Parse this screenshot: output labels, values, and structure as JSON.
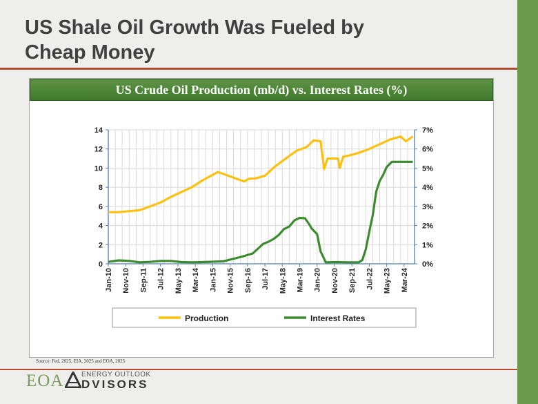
{
  "slide": {
    "title": "US Shale Oil Growth Was Fueled by Cheap Money",
    "source": "Source: Fed, 2025, EIA, 2025 and EOA, 2025"
  },
  "logo": {
    "mark": "EOA",
    "line1": "ENERGY OUTLOOK",
    "line2": "DVISORS"
  },
  "colors": {
    "accent_bar": "#6a9a4a",
    "rule": "#b14c2a",
    "production": "#fdc010",
    "rates": "#3c8a2e",
    "banner": "#4f8a38"
  },
  "chart_data": {
    "type": "line",
    "title": "US Crude Oil Production (mb/d) vs. Interest Rates (%)",
    "x_ticks": [
      "Jan-10",
      "Nov-10",
      "Sep-11",
      "Jul-12",
      "May-13",
      "Mar-14",
      "Jan-15",
      "Nov-15",
      "Sep-16",
      "Jul-17",
      "May-18",
      "Mar-19",
      "Jan-20",
      "Nov-20",
      "Sep-21",
      "Jul-22",
      "May-23",
      "Mar-24"
    ],
    "y_left_ticks": [
      "0",
      "2",
      "4",
      "6",
      "8",
      "10",
      "12",
      "14"
    ],
    "y_right_ticks": [
      "0%",
      "1%",
      "2%",
      "3%",
      "4%",
      "5%",
      "6%",
      "7%"
    ],
    "ylim_left": [
      0,
      14
    ],
    "ylim_right": [
      0,
      7
    ],
    "grid": true,
    "legend_position": "bottom",
    "series": [
      {
        "name": "Production",
        "axis": "left",
        "x": [
          "2010-01",
          "2010-07",
          "2011-01",
          "2011-07",
          "2012-01",
          "2012-07",
          "2013-01",
          "2013-07",
          "2014-01",
          "2014-07",
          "2015-01",
          "2015-04",
          "2015-07",
          "2016-01",
          "2016-07",
          "2016-10",
          "2017-01",
          "2017-07",
          "2018-01",
          "2018-07",
          "2019-01",
          "2019-07",
          "2019-11",
          "2020-03",
          "2020-05",
          "2020-07",
          "2020-10",
          "2021-01",
          "2021-02",
          "2021-04",
          "2021-07",
          "2022-01",
          "2022-07",
          "2023-01",
          "2023-07",
          "2024-01",
          "2024-04",
          "2024-08"
        ],
        "values": [
          5.4,
          5.4,
          5.5,
          5.6,
          6.0,
          6.4,
          7.0,
          7.5,
          8.0,
          8.7,
          9.3,
          9.6,
          9.4,
          9.0,
          8.6,
          8.9,
          8.9,
          9.2,
          10.2,
          11.0,
          11.8,
          12.2,
          12.9,
          12.8,
          9.9,
          11.0,
          11.0,
          11.0,
          10.0,
          11.2,
          11.3,
          11.6,
          12.0,
          12.5,
          13.0,
          13.3,
          12.8,
          13.3
        ]
      },
      {
        "name": "Interest Rates",
        "axis": "right",
        "x": [
          "2010-01",
          "2010-07",
          "2011-01",
          "2011-07",
          "2012-01",
          "2012-07",
          "2013-01",
          "2013-07",
          "2014-01",
          "2014-07",
          "2015-01",
          "2015-07",
          "2015-12",
          "2016-06",
          "2016-12",
          "2017-03",
          "2017-06",
          "2017-09",
          "2017-12",
          "2018-03",
          "2018-06",
          "2018-09",
          "2018-12",
          "2019-03",
          "2019-06",
          "2019-08",
          "2019-10",
          "2020-01",
          "2020-03",
          "2020-06",
          "2021-01",
          "2021-06",
          "2022-01",
          "2022-03",
          "2022-05",
          "2022-07",
          "2022-09",
          "2022-11",
          "2023-01",
          "2023-03",
          "2023-05",
          "2023-08",
          "2024-01",
          "2024-08"
        ],
        "values": [
          0.1,
          0.18,
          0.15,
          0.08,
          0.1,
          0.15,
          0.15,
          0.09,
          0.08,
          0.09,
          0.11,
          0.13,
          0.24,
          0.38,
          0.54,
          0.79,
          1.04,
          1.15,
          1.3,
          1.51,
          1.82,
          1.95,
          2.27,
          2.4,
          2.38,
          2.13,
          1.83,
          1.55,
          0.65,
          0.08,
          0.09,
          0.08,
          0.08,
          0.2,
          0.77,
          1.68,
          2.56,
          3.78,
          4.33,
          4.65,
          5.06,
          5.33,
          5.33,
          5.33
        ]
      }
    ]
  }
}
